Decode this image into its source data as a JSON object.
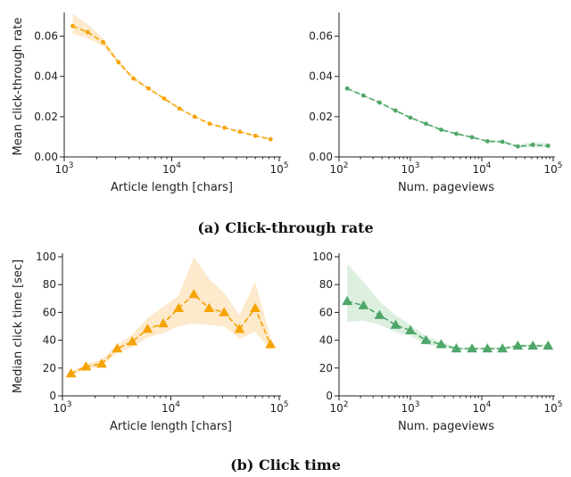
{
  "captions": {
    "row1": "(a) Click-through rate",
    "row2": "(b) Click time"
  },
  "colors": {
    "orange": "#f5a300",
    "orange_band": "#fde7c6",
    "green": "#4fa66a",
    "green_band": "#d9eedd"
  },
  "chart_data": [
    {
      "type": "line",
      "xlabel": "Article length [chars]",
      "ylabel": "Mean click-through rate",
      "xscale": "log",
      "xlim": [
        1000,
        100000
      ],
      "ylim": [
        0,
        0.07
      ],
      "x_ticks": [
        1000,
        10000,
        100000
      ],
      "x_tick_labels": [
        "10^3",
        "10^4",
        "10^5"
      ],
      "y_ticks": [
        0,
        0.02,
        0.04,
        0.06
      ],
      "y_tick_labels": [
        "0.00",
        "0.02",
        "0.04",
        "0.06"
      ],
      "series": [
        {
          "color": "orange",
          "marker": "circle",
          "x": [
            1200,
            1650,
            2300,
            3200,
            4400,
            6100,
            8500,
            11800,
            16300,
            22500,
            31000,
            43000,
            60000,
            83000
          ],
          "y": [
            0.065,
            0.062,
            0.057,
            0.047,
            0.039,
            0.034,
            0.029,
            0.024,
            0.02,
            0.0165,
            0.0145,
            0.0125,
            0.0105,
            0.0088
          ],
          "band_low": [
            0.061,
            0.059,
            0.055,
            0.046,
            0.038,
            0.0335,
            0.0285,
            0.0237,
            0.0198,
            0.0163,
            0.0143,
            0.0123,
            0.0103,
            0.0086
          ],
          "band_high": [
            0.071,
            0.066,
            0.059,
            0.048,
            0.04,
            0.0345,
            0.0295,
            0.0243,
            0.0202,
            0.0167,
            0.0147,
            0.0127,
            0.0107,
            0.009
          ]
        }
      ]
    },
    {
      "type": "line",
      "xlabel": "Num. pageviews",
      "ylabel": "",
      "xscale": "log",
      "xlim": [
        100,
        100000
      ],
      "ylim": [
        0,
        0.07
      ],
      "x_ticks": [
        100,
        1000,
        10000,
        100000
      ],
      "x_tick_labels": [
        "10^2",
        "10^3",
        "10^4",
        "10^5"
      ],
      "y_ticks": [
        0,
        0.02,
        0.04,
        0.06
      ],
      "y_tick_labels": [
        "0.00",
        "0.02",
        "0.04",
        "0.06"
      ],
      "series": [
        {
          "color": "green",
          "marker": "circle",
          "x": [
            130,
            220,
            370,
            620,
            1000,
            1650,
            2700,
            4400,
            7300,
            12000,
            19500,
            32000,
            52000,
            85000
          ],
          "y": [
            0.034,
            0.0305,
            0.027,
            0.023,
            0.0195,
            0.0165,
            0.0135,
            0.0115,
            0.0098,
            0.0078,
            0.0075,
            0.0052,
            0.006,
            0.0055
          ],
          "band_low": [
            0.0335,
            0.03,
            0.0265,
            0.0225,
            0.019,
            0.016,
            0.013,
            0.011,
            0.0093,
            0.0073,
            0.0068,
            0.0045,
            0.0048,
            0.0045
          ],
          "band_high": [
            0.0345,
            0.031,
            0.0275,
            0.0235,
            0.02,
            0.017,
            0.014,
            0.012,
            0.0103,
            0.0083,
            0.0085,
            0.006,
            0.0075,
            0.0068
          ]
        }
      ]
    },
    {
      "type": "line",
      "xlabel": "Article length [chars]",
      "ylabel": "Median click time [sec]",
      "xscale": "log",
      "xlim": [
        1000,
        100000
      ],
      "ylim": [
        0,
        100
      ],
      "x_ticks": [
        1000,
        10000,
        100000
      ],
      "x_tick_labels": [
        "10^3",
        "10^4",
        "10^5"
      ],
      "y_ticks": [
        0,
        20,
        40,
        60,
        80,
        100
      ],
      "y_tick_labels": [
        "0",
        "20",
        "40",
        "60",
        "80",
        "100"
      ],
      "series": [
        {
          "color": "orange",
          "marker": "triangle",
          "x": [
            1200,
            1650,
            2300,
            3200,
            4400,
            6100,
            8500,
            11800,
            16300,
            22500,
            31000,
            43000,
            60000,
            83000
          ],
          "y": [
            16,
            21,
            23,
            34,
            39,
            48,
            52,
            63,
            73,
            63,
            60,
            48,
            63,
            37
          ],
          "band_low": [
            15,
            19,
            21,
            31,
            35,
            42,
            45,
            50,
            52,
            51,
            50,
            41,
            46,
            33
          ],
          "band_high": [
            17,
            23,
            26,
            37,
            44,
            56,
            64,
            72,
            100,
            84,
            74,
            58,
            82,
            42
          ]
        }
      ]
    },
    {
      "type": "line",
      "xlabel": "Num. pageviews",
      "ylabel": "",
      "xscale": "log",
      "xlim": [
        100,
        100000
      ],
      "ylim": [
        0,
        100
      ],
      "x_ticks": [
        100,
        1000,
        10000,
        100000
      ],
      "x_tick_labels": [
        "10^2",
        "10^3",
        "10^4",
        "10^5"
      ],
      "y_ticks": [
        0,
        20,
        40,
        60,
        80,
        100
      ],
      "y_tick_labels": [
        "0",
        "20",
        "40",
        "60",
        "80",
        "100"
      ],
      "series": [
        {
          "color": "green",
          "marker": "triangle",
          "x": [
            130,
            220,
            370,
            620,
            1000,
            1650,
            2700,
            4400,
            7300,
            12000,
            19500,
            32000,
            52000,
            85000
          ],
          "y": [
            68,
            65,
            58,
            51,
            47,
            40,
            37,
            34,
            34,
            34,
            34,
            36,
            36,
            36
          ],
          "band_low": [
            53,
            54,
            51,
            46,
            43,
            37,
            35,
            33,
            33,
            33,
            33,
            35,
            35,
            35
          ],
          "band_high": [
            95,
            82,
            68,
            58,
            51,
            43,
            39,
            35,
            35,
            35,
            35,
            37,
            37,
            37
          ]
        }
      ]
    }
  ]
}
